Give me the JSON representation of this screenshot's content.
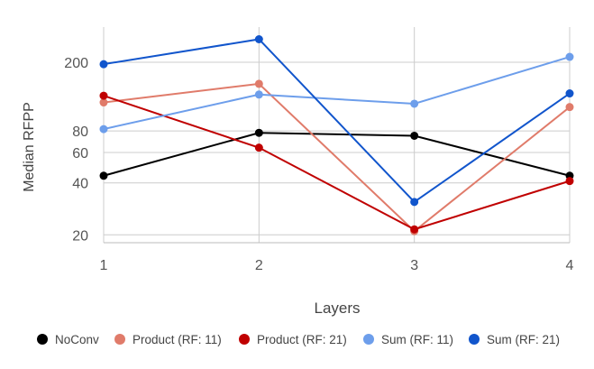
{
  "chart_data": {
    "type": "line",
    "x": [
      1,
      2,
      3,
      4
    ],
    "xlabel": "Layers",
    "ylabel": "Median RFPP",
    "yscale": "log",
    "ylim": [
      18,
      320
    ],
    "xlim": [
      1,
      4
    ],
    "yticks": [
      20,
      40,
      60,
      80,
      200
    ],
    "xticks": [
      1,
      2,
      3,
      4
    ],
    "grid": true,
    "legend_position": "bottom",
    "series": [
      {
        "name": "NoConv",
        "color": "#000000",
        "values": [
          44,
          78,
          75,
          44
        ]
      },
      {
        "name": "Product (RF: 11)",
        "color": "#e07b6a",
        "values": [
          117,
          150,
          21,
          110
        ]
      },
      {
        "name": "Product (RF: 21)",
        "color": "#c00000",
        "values": [
          128,
          64,
          21.5,
          41
        ]
      },
      {
        "name": "Sum (RF: 11)",
        "color": "#6d9eeb",
        "values": [
          82,
          130,
          115,
          215
        ]
      },
      {
        "name": "Sum (RF: 21)",
        "color": "#1155cc",
        "values": [
          195,
          272,
          31,
          132
        ]
      }
    ]
  }
}
